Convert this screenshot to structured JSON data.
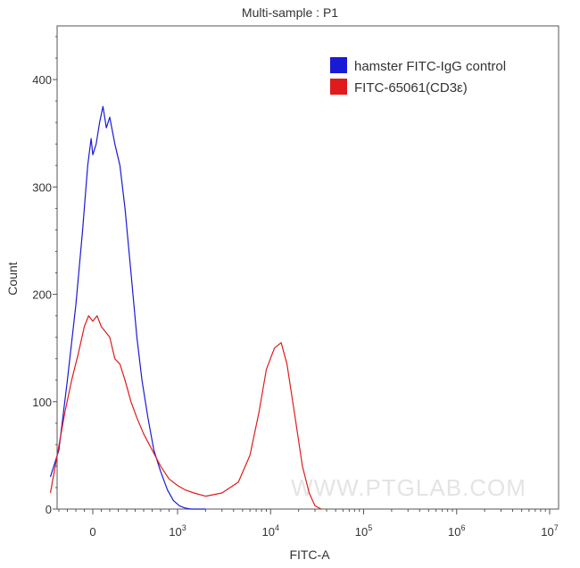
{
  "chart_data": {
    "type": "line",
    "title": "Multi-sample : P1",
    "xlabel": "FITC-A",
    "ylabel": "Count",
    "xscale": "biexponential",
    "xlim": [
      -500,
      10000000
    ],
    "ylim": [
      0,
      450
    ],
    "x_tick_labels": [
      {
        "base": "0",
        "exp": ""
      },
      {
        "base": "10",
        "exp": "3"
      },
      {
        "base": "10",
        "exp": "4"
      },
      {
        "base": "10",
        "exp": "5"
      },
      {
        "base": "10",
        "exp": "6"
      },
      {
        "base": "10",
        "exp": "7"
      }
    ],
    "y_tick_labels": [
      "0",
      "100",
      "200",
      "300",
      "400"
    ],
    "y_ticks": [
      0,
      100,
      200,
      300,
      400
    ],
    "legend_position": "top-right",
    "grid": false,
    "watermark": "WWW.PTGLAB.COM",
    "series": [
      {
        "name": "hamster FITC-IgG control",
        "color": "#1a1ad6",
        "points": [
          [
            -500,
            30
          ],
          [
            -400,
            55
          ],
          [
            -300,
            120
          ],
          [
            -200,
            190
          ],
          [
            -120,
            260
          ],
          [
            -60,
            320
          ],
          [
            -20,
            345
          ],
          [
            0,
            330
          ],
          [
            40,
            340
          ],
          [
            80,
            360
          ],
          [
            120,
            375
          ],
          [
            160,
            355
          ],
          [
            200,
            365
          ],
          [
            260,
            340
          ],
          [
            320,
            320
          ],
          [
            380,
            280
          ],
          [
            450,
            220
          ],
          [
            520,
            160
          ],
          [
            580,
            120
          ],
          [
            650,
            85
          ],
          [
            720,
            55
          ],
          [
            800,
            35
          ],
          [
            880,
            18
          ],
          [
            950,
            8
          ],
          [
            1050,
            3
          ],
          [
            1200,
            1
          ],
          [
            1400,
            0
          ],
          [
            2000,
            0
          ]
        ]
      },
      {
        "name": "FITC-65061(CD3ε)",
        "color": "#e01b1b",
        "points": [
          [
            -500,
            15
          ],
          [
            -420,
            50
          ],
          [
            -330,
            90
          ],
          [
            -250,
            120
          ],
          [
            -170,
            145
          ],
          [
            -100,
            170
          ],
          [
            -50,
            180
          ],
          [
            0,
            175
          ],
          [
            50,
            180
          ],
          [
            100,
            170
          ],
          [
            150,
            165
          ],
          [
            200,
            160
          ],
          [
            260,
            140
          ],
          [
            320,
            135
          ],
          [
            380,
            120
          ],
          [
            450,
            100
          ],
          [
            520,
            85
          ],
          [
            600,
            70
          ],
          [
            700,
            55
          ],
          [
            800,
            40
          ],
          [
            900,
            28
          ],
          [
            1000,
            22
          ],
          [
            1200,
            18
          ],
          [
            1500,
            15
          ],
          [
            2000,
            12
          ],
          [
            3000,
            15
          ],
          [
            4500,
            25
          ],
          [
            6000,
            50
          ],
          [
            7500,
            90
          ],
          [
            9000,
            130
          ],
          [
            11000,
            150
          ],
          [
            13000,
            155
          ],
          [
            15000,
            135
          ],
          [
            18000,
            90
          ],
          [
            22000,
            40
          ],
          [
            26000,
            15
          ],
          [
            30000,
            3
          ],
          [
            35000,
            0
          ]
        ]
      }
    ]
  }
}
